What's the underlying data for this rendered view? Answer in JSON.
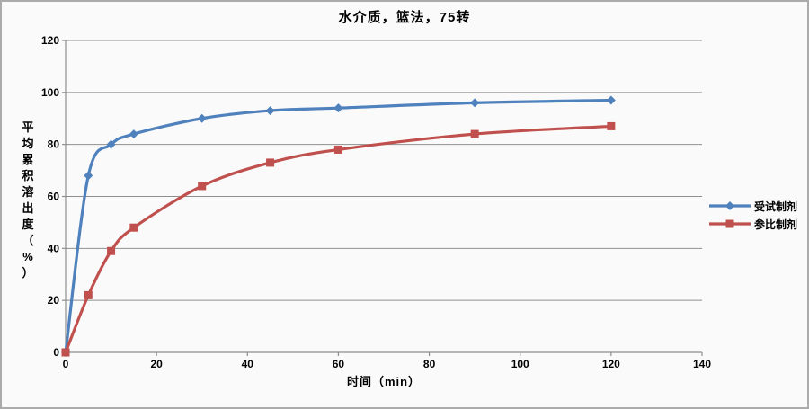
{
  "colors": {
    "background": "#FAFAFA",
    "frame_border": "#ABABAB",
    "grid": "#8E8E8E",
    "axis": "#8E8E8E",
    "text": "#000000",
    "series_test_blue": "#4F81BD",
    "series_reference_red": "#C0504D"
  },
  "chart_data": {
    "type": "line",
    "title": "水介质，篮法，75转",
    "xlabel": "时间（min）",
    "ylabel": "平均累积溶出度（%）",
    "x": [
      0,
      5,
      10,
      15,
      30,
      45,
      60,
      90,
      120
    ],
    "series": [
      {
        "name": "受试制剂",
        "color": "#4F81BD",
        "marker": "diamond",
        "values": [
          0,
          68,
          80,
          84,
          90,
          93,
          94,
          96,
          97
        ]
      },
      {
        "name": "参比制剂",
        "color": "#C0504D",
        "marker": "square",
        "values": [
          0,
          22,
          39,
          48,
          64,
          73,
          78,
          84,
          87
        ]
      }
    ],
    "xlim": [
      0,
      140
    ],
    "ylim": [
      0,
      120
    ],
    "xticks": [
      0,
      20,
      40,
      60,
      80,
      100,
      120,
      140
    ],
    "yticks": [
      0,
      20,
      40,
      60,
      80,
      100,
      120
    ],
    "grid": "horizontal",
    "legend_position": "right",
    "smooth_lines": true
  }
}
